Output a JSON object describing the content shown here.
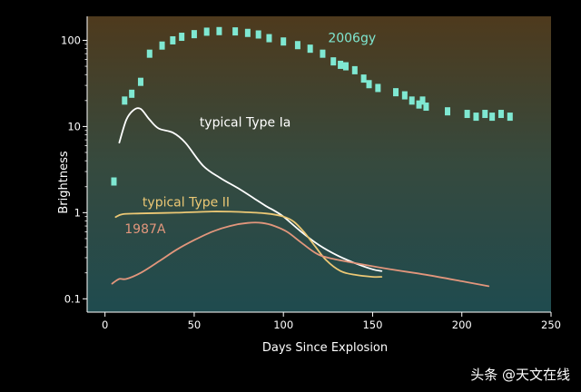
{
  "chart_data": {
    "type": "line",
    "xlabel": "Days Since Explosion",
    "ylabel": "Brightness",
    "xlim": [
      -10,
      250
    ],
    "ylim": [
      0.07,
      190
    ],
    "yscale": "log",
    "x_ticks": [
      "0",
      "50",
      "100",
      "150",
      "200",
      "250"
    ],
    "y_ticks": [
      "0.1",
      "1",
      "10",
      "100"
    ],
    "grid": false,
    "legend": "none",
    "series": [
      {
        "name": "2006gy",
        "kind": "scatter",
        "color": "#7fe8d2",
        "points": [
          [
            5,
            2.3
          ],
          [
            11,
            20
          ],
          [
            15,
            24
          ],
          [
            20,
            33
          ],
          [
            25,
            70
          ],
          [
            32,
            87
          ],
          [
            38,
            100
          ],
          [
            43,
            110
          ],
          [
            50,
            118
          ],
          [
            57,
            126
          ],
          [
            64,
            128
          ],
          [
            73,
            127
          ],
          [
            80,
            122
          ],
          [
            86,
            117
          ],
          [
            92,
            106
          ],
          [
            100,
            97
          ],
          [
            108,
            88
          ],
          [
            115,
            80
          ],
          [
            122,
            70
          ],
          [
            128,
            57
          ],
          [
            132,
            52
          ],
          [
            135,
            50
          ],
          [
            140,
            45
          ],
          [
            145,
            36
          ],
          [
            148,
            31
          ],
          [
            153,
            28
          ],
          [
            163,
            25
          ],
          [
            168,
            23
          ],
          [
            172,
            20
          ],
          [
            176,
            18
          ],
          [
            178,
            20
          ],
          [
            180,
            17
          ],
          [
            192,
            15
          ],
          [
            203,
            14
          ],
          [
            208,
            13
          ],
          [
            213,
            14
          ],
          [
            217,
            13
          ],
          [
            222,
            14
          ],
          [
            227,
            13
          ]
        ]
      },
      {
        "name": "typical Type Ia",
        "kind": "line",
        "color": "#ffffff",
        "points": [
          [
            8,
            6.5
          ],
          [
            12,
            12
          ],
          [
            16,
            15.5
          ],
          [
            20,
            16
          ],
          [
            25,
            12
          ],
          [
            30,
            9.5
          ],
          [
            38,
            8.5
          ],
          [
            45,
            6.5
          ],
          [
            55,
            3.5
          ],
          [
            65,
            2.5
          ],
          [
            75,
            1.9
          ],
          [
            85,
            1.4
          ],
          [
            90,
            1.2
          ],
          [
            95,
            1.05
          ],
          [
            100,
            0.9
          ],
          [
            110,
            0.6
          ],
          [
            120,
            0.42
          ],
          [
            130,
            0.32
          ],
          [
            140,
            0.26
          ],
          [
            150,
            0.22
          ],
          [
            155,
            0.21
          ]
        ]
      },
      {
        "name": "typical Type II",
        "kind": "line",
        "color": "#ecc875",
        "points": [
          [
            6,
            0.89
          ],
          [
            10,
            0.96
          ],
          [
            20,
            0.98
          ],
          [
            40,
            1.0
          ],
          [
            60,
            1.03
          ],
          [
            75,
            1.02
          ],
          [
            90,
            0.98
          ],
          [
            100,
            0.9
          ],
          [
            106,
            0.78
          ],
          [
            112,
            0.58
          ],
          [
            118,
            0.4
          ],
          [
            124,
            0.28
          ],
          [
            132,
            0.21
          ],
          [
            140,
            0.19
          ],
          [
            150,
            0.18
          ],
          [
            155,
            0.18
          ]
        ]
      },
      {
        "name": "1987A",
        "kind": "line",
        "color": "#e2967c",
        "points": [
          [
            4,
            0.15
          ],
          [
            8,
            0.17
          ],
          [
            12,
            0.17
          ],
          [
            20,
            0.2
          ],
          [
            30,
            0.27
          ],
          [
            40,
            0.37
          ],
          [
            50,
            0.48
          ],
          [
            60,
            0.6
          ],
          [
            70,
            0.7
          ],
          [
            80,
            0.76
          ],
          [
            88,
            0.76
          ],
          [
            95,
            0.7
          ],
          [
            102,
            0.6
          ],
          [
            110,
            0.45
          ],
          [
            118,
            0.34
          ],
          [
            125,
            0.3
          ],
          [
            140,
            0.26
          ],
          [
            160,
            0.22
          ],
          [
            180,
            0.19
          ],
          [
            200,
            0.16
          ],
          [
            215,
            0.14
          ]
        ]
      }
    ],
    "annotations": [
      {
        "text": "2006gy",
        "x": 125,
        "y": 95,
        "color": "#7fe8d2"
      },
      {
        "text": "typical Type Ia",
        "x": 53,
        "y": 10,
        "color": "#ffffff"
      },
      {
        "text": "typical Type II",
        "x": 21,
        "y": 1.18,
        "color": "#ecc875"
      },
      {
        "text": "1987A",
        "x": 11,
        "y": 0.58,
        "color": "#e2967c"
      }
    ]
  },
  "watermark": "头条 @天文在线"
}
